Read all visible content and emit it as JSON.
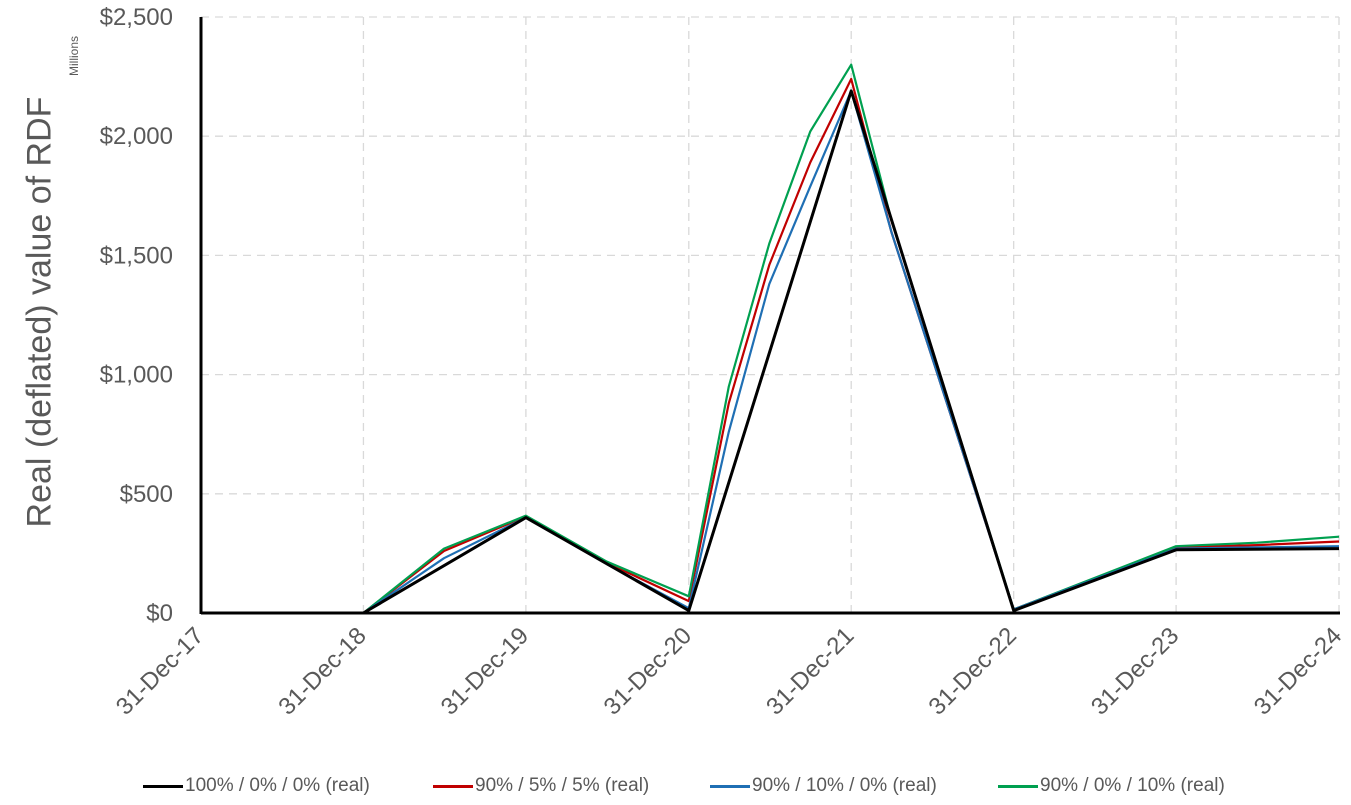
{
  "chart_data": {
    "type": "line",
    "ylabel": "Real (deflated) value of RDF",
    "y_units": "Millions",
    "ylim": [
      0,
      2500
    ],
    "yticks": [
      0,
      500,
      1000,
      1500,
      2000,
      2500
    ],
    "ytick_labels": [
      "$0",
      "$500",
      "$1,000",
      "$1,500",
      "$2,000",
      "$2,500"
    ],
    "x_categories": [
      "31-Dec-17",
      "31-Dec-18",
      "31-Dec-19",
      "31-Dec-20",
      "31-Dec-21",
      "31-Dec-22",
      "31-Dec-23",
      "31-Dec-24"
    ],
    "grid": true,
    "legend_position": "bottom",
    "series": [
      {
        "name": "100% / 0% / 0% (real)",
        "color": "#000000",
        "points": [
          [
            "31-Dec-17",
            0
          ],
          [
            "31-Dec-18",
            0
          ],
          [
            "31-Dec-19",
            400
          ],
          [
            "31-Dec-20",
            10
          ],
          [
            "31-Dec-21",
            2190
          ],
          [
            "31-Dec-22",
            10
          ],
          [
            "31-Dec-23",
            265
          ],
          [
            "31-Dec-24",
            270
          ]
        ]
      },
      {
        "name": "90% / 5% / 5% (real)",
        "color": "#C00000",
        "points": [
          [
            "31-Dec-17",
            0
          ],
          [
            "31-Dec-18",
            0
          ],
          [
            "30-Jun-19",
            260
          ],
          [
            "31-Dec-19",
            405
          ],
          [
            "30-Jun-20",
            210
          ],
          [
            "31-Dec-20",
            50
          ],
          [
            "31-Mar-21",
            880
          ],
          [
            "30-Jun-21",
            1460
          ],
          [
            "30-Sep-21",
            1890
          ],
          [
            "31-Dec-21",
            2240
          ],
          [
            "31-Mar-22",
            1600
          ],
          [
            "31-Dec-22",
            15
          ],
          [
            "31-Dec-23",
            275
          ],
          [
            "30-Jun-24",
            285
          ],
          [
            "31-Dec-24",
            300
          ]
        ]
      },
      {
        "name": "90% / 10% / 0% (real)",
        "color": "#1F6FB4",
        "points": [
          [
            "31-Dec-17",
            0
          ],
          [
            "31-Dec-18",
            0
          ],
          [
            "30-Jun-19",
            230
          ],
          [
            "31-Dec-19",
            400
          ],
          [
            "30-Jun-20",
            205
          ],
          [
            "31-Dec-20",
            20
          ],
          [
            "31-Mar-21",
            760
          ],
          [
            "30-Jun-21",
            1380
          ],
          [
            "30-Sep-21",
            1790
          ],
          [
            "31-Dec-21",
            2190
          ],
          [
            "31-Mar-22",
            1600
          ],
          [
            "31-Dec-22",
            15
          ],
          [
            "31-Dec-23",
            270
          ],
          [
            "30-Jun-24",
            275
          ],
          [
            "31-Dec-24",
            280
          ]
        ]
      },
      {
        "name": "90% / 0% / 10% (real)",
        "color": "#00A050",
        "points": [
          [
            "31-Dec-17",
            0
          ],
          [
            "31-Dec-18",
            0
          ],
          [
            "30-Jun-19",
            270
          ],
          [
            "31-Dec-19",
            408
          ],
          [
            "30-Jun-20",
            215
          ],
          [
            "31-Dec-20",
            70
          ],
          [
            "31-Mar-21",
            950
          ],
          [
            "30-Jun-21",
            1550
          ],
          [
            "30-Sep-21",
            2020
          ],
          [
            "31-Dec-21",
            2300
          ],
          [
            "31-Mar-22",
            1650
          ],
          [
            "31-Dec-22",
            15
          ],
          [
            "31-Dec-23",
            280
          ],
          [
            "30-Jun-24",
            295
          ],
          [
            "31-Dec-24",
            320
          ]
        ]
      }
    ]
  }
}
